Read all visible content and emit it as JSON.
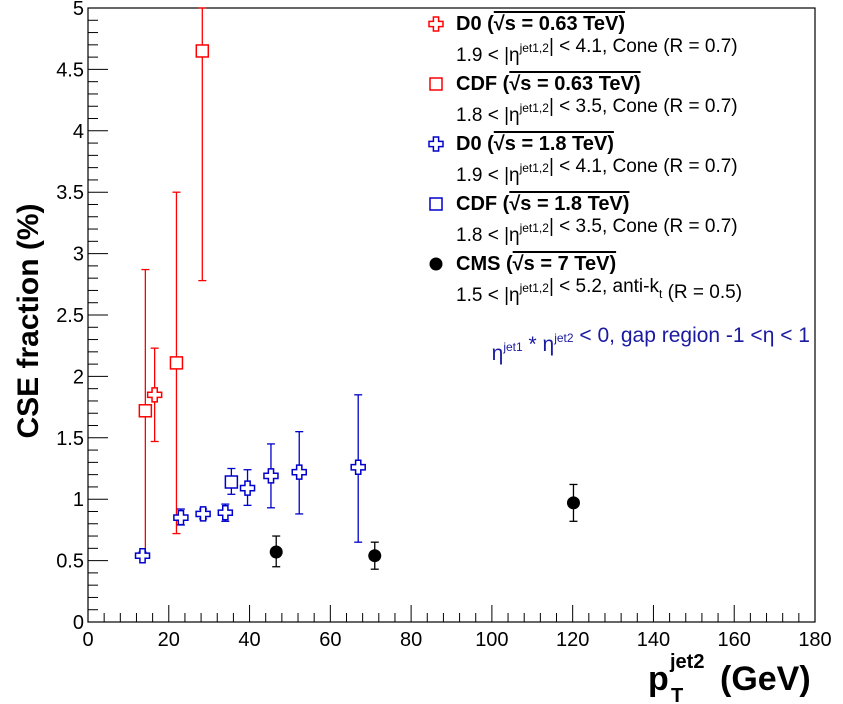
{
  "chart_data": {
    "type": "scatter",
    "xlim": [
      0,
      180
    ],
    "ylim": [
      0,
      5
    ],
    "x_ticks": [
      "0",
      "20",
      "40",
      "60",
      "80",
      "100",
      "120",
      "140",
      "160",
      "180"
    ],
    "y_ticks": [
      "0",
      "0.5",
      "1",
      "1.5",
      "2",
      "2.5",
      "3",
      "3.5",
      "4",
      "4.5",
      "5"
    ],
    "ylabel": "CSE fraction (%)",
    "xlabel": {
      "symbol": "p",
      "superscript": "jet2",
      "subscript": "T",
      "unit": "(GeV)"
    },
    "legend_position": "top-right",
    "series": [
      {
        "legend_title": "D0 (√s = 0.63 TeV)",
        "legend_sub": "1.9 < |η^jet1,2| < 4.1, Cone (R = 0.7)",
        "color": "#ff0000",
        "marker": "open-cross",
        "points": [
          {
            "x": 16.5,
            "y": 1.85,
            "lo": 1.47,
            "hi": 2.23
          }
        ]
      },
      {
        "legend_title": "CDF (√s = 0.63 TeV)",
        "legend_sub": "1.8 < |η^jet1,2| < 3.5, Cone (R = 0.7)",
        "color": "#ff0000",
        "marker": "open-square",
        "points": [
          {
            "x": 14.2,
            "y": 1.72,
            "lo": 0.55,
            "hi": 2.87
          },
          {
            "x": 21.9,
            "y": 2.11,
            "lo": 0.72,
            "hi": 3.5
          },
          {
            "x": 28.3,
            "y": 4.65,
            "lo": 2.78,
            "hi": 5.0
          }
        ]
      },
      {
        "legend_title": "D0 (√s = 1.8 TeV)",
        "legend_sub": "1.9 < |η^jet1,2| < 4.1, Cone (R = 0.7)",
        "color": "#0000cc",
        "marker": "open-cross",
        "points": [
          {
            "x": 13.5,
            "y": 0.54,
            "lo": 0.52,
            "hi": 0.57
          },
          {
            "x": 23.0,
            "y": 0.85,
            "lo": 0.79,
            "hi": 0.92
          },
          {
            "x": 28.5,
            "y": 0.88,
            "lo": 0.84,
            "hi": 0.92
          },
          {
            "x": 34.0,
            "y": 0.89,
            "lo": 0.82,
            "hi": 0.96
          },
          {
            "x": 39.5,
            "y": 1.09,
            "lo": 0.95,
            "hi": 1.24
          },
          {
            "x": 45.3,
            "y": 1.19,
            "lo": 0.93,
            "hi": 1.45
          },
          {
            "x": 52.3,
            "y": 1.22,
            "lo": 0.88,
            "hi": 1.55
          },
          {
            "x": 66.9,
            "y": 1.26,
            "lo": 0.65,
            "hi": 1.85
          }
        ]
      },
      {
        "legend_title": "CDF (√s = 1.8 TeV)",
        "legend_sub": "1.8 < |η^jet1,2| < 3.5, Cone (R = 0.7)",
        "color": "#0000cc",
        "marker": "open-square",
        "points": [
          {
            "x": 35.5,
            "y": 1.14,
            "lo": 1.04,
            "hi": 1.25
          }
        ]
      },
      {
        "legend_title": "CMS (√s = 7 TeV)",
        "legend_sub": "1.5 < |η^jet1,2| < 5.2, anti-k_t (R = 0.5)",
        "color": "#000000",
        "marker": "filled-circle",
        "points": [
          {
            "x": 46.6,
            "y": 0.57,
            "lo": 0.45,
            "hi": 0.7
          },
          {
            "x": 71.0,
            "y": 0.54,
            "lo": 0.43,
            "hi": 0.65
          },
          {
            "x": 120.2,
            "y": 0.97,
            "lo": 0.82,
            "hi": 1.12
          }
        ]
      }
    ],
    "annotation": "η^jet1 * η^jet2 < 0, gap region -1 <η < 1"
  }
}
